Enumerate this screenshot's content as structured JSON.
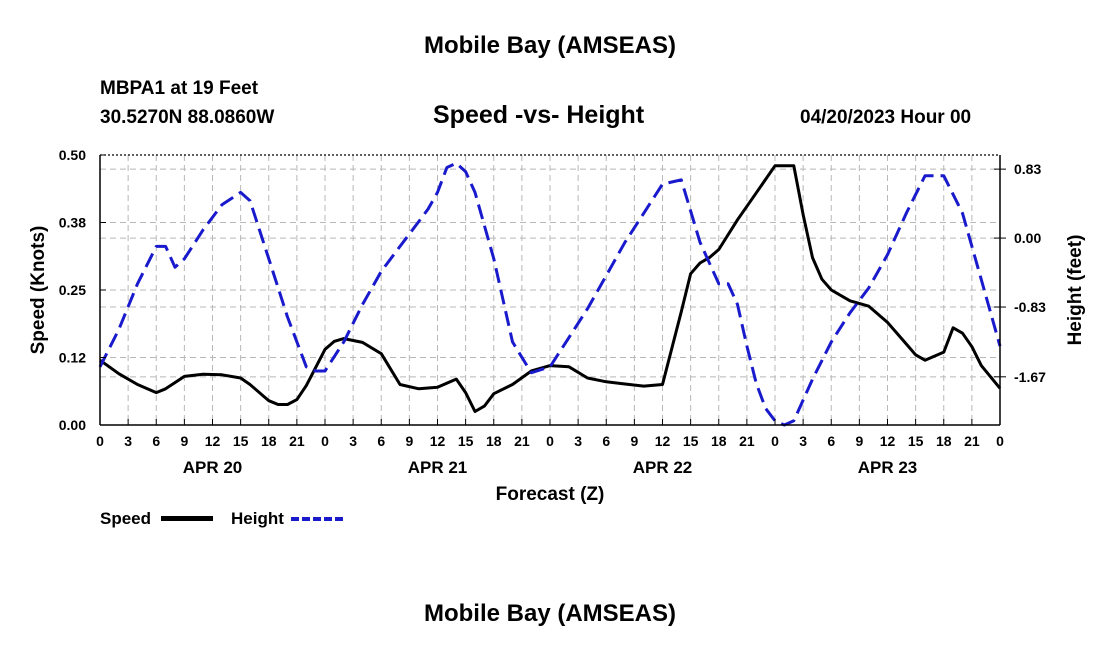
{
  "header": {
    "title": "Mobile Bay (AMSEAS)",
    "station": "MBPA1 at 19 Feet",
    "coords": "30.5270N  88.0860W",
    "subtitle": "Speed -vs- Height",
    "datetime": "04/20/2023 Hour 00"
  },
  "legend": {
    "speed_label": "Speed",
    "height_label": "Height"
  },
  "footer": {
    "title": "Mobile Bay (AMSEAS)"
  },
  "chart_data": {
    "type": "line",
    "title": "Speed -vs- Height",
    "xlabel": "Forecast (Z)",
    "ylabel_left": "Speed (Knots)",
    "ylabel_right": "Height (feet)",
    "grid": true,
    "legend_position": "bottom-left",
    "xlim": [
      0,
      96
    ],
    "ylim_left": [
      0,
      0.5
    ],
    "ylim_right": [
      -2.25,
      1.0
    ],
    "x_tick_labels": [
      "0",
      "3",
      "6",
      "9",
      "12",
      "15",
      "18",
      "21",
      "0",
      "3",
      "6",
      "9",
      "12",
      "15",
      "18",
      "21",
      "0",
      "3",
      "6",
      "9",
      "12",
      "15",
      "18",
      "21",
      "0",
      "3",
      "6",
      "9",
      "12",
      "15",
      "18",
      "21",
      "0"
    ],
    "day_labels": [
      {
        "label": "APR 20",
        "x": 12
      },
      {
        "label": "APR 21",
        "x": 36
      },
      {
        "label": "APR 22",
        "x": 60
      },
      {
        "label": "APR 23",
        "x": 84
      }
    ],
    "left_ticks": [
      "0.00",
      "0.12",
      "0.25",
      "0.38",
      "0.50"
    ],
    "right_ticks": [
      {
        "label": "0.83",
        "value": 0.83
      },
      {
        "label": "0.00",
        "value": 0.0
      },
      {
        "label": "-0.83",
        "value": -0.83
      },
      {
        "label": "-1.67",
        "value": -1.67
      }
    ],
    "series": [
      {
        "name": "Speed",
        "axis": "left",
        "color": "#000000",
        "style": "solid",
        "x": [
          0,
          2,
          4,
          6,
          7,
          9,
          11,
          13,
          15,
          16,
          18,
          19,
          20,
          21,
          22,
          24,
          25,
          26,
          28,
          30,
          32,
          34,
          36,
          38,
          39,
          40,
          41,
          42,
          44,
          46,
          48,
          50,
          52,
          54,
          56,
          58,
          60,
          62,
          63,
          64,
          65,
          66,
          68,
          70,
          72,
          74,
          75,
          76,
          77,
          78,
          80,
          82,
          84,
          86,
          87,
          88,
          90,
          91,
          92,
          93,
          94,
          96
        ],
        "values": [
          0.12,
          0.095,
          0.075,
          0.06,
          0.067,
          0.09,
          0.094,
          0.093,
          0.087,
          0.075,
          0.045,
          0.038,
          0.038,
          0.047,
          0.073,
          0.14,
          0.155,
          0.16,
          0.153,
          0.132,
          0.075,
          0.067,
          0.07,
          0.085,
          0.06,
          0.025,
          0.035,
          0.058,
          0.075,
          0.1,
          0.11,
          0.108,
          0.087,
          0.08,
          0.076,
          0.072,
          0.075,
          0.21,
          0.28,
          0.3,
          0.31,
          0.325,
          0.38,
          0.43,
          0.48,
          0.48,
          0.39,
          0.31,
          0.27,
          0.25,
          0.23,
          0.22,
          0.19,
          0.15,
          0.13,
          0.12,
          0.135,
          0.18,
          0.17,
          0.145,
          0.11,
          0.068
        ]
      },
      {
        "name": "Height",
        "axis": "right",
        "color": "#1a1acd",
        "style": "dashed",
        "x": [
          0,
          2,
          4,
          6,
          7,
          8,
          9,
          11,
          13,
          15,
          16,
          18,
          20,
          22,
          23,
          24,
          26,
          28,
          30,
          32,
          34,
          35,
          36,
          37,
          38,
          39,
          40,
          42,
          44,
          46,
          48,
          50,
          52,
          54,
          56,
          58,
          60,
          62,
          64,
          66,
          67,
          68,
          69,
          70,
          71,
          72,
          73,
          74,
          75,
          76,
          78,
          80,
          82,
          84,
          86,
          88,
          90,
          92,
          94,
          96
        ],
        "values": [
          -1.55,
          -1.1,
          -0.55,
          -0.1,
          -0.1,
          -0.35,
          -0.25,
          0.1,
          0.4,
          0.55,
          0.45,
          -0.25,
          -0.95,
          -1.55,
          -1.6,
          -1.6,
          -1.25,
          -0.8,
          -0.4,
          -0.1,
          0.2,
          0.35,
          0.55,
          0.85,
          0.9,
          0.8,
          0.55,
          -0.25,
          -1.25,
          -1.62,
          -1.55,
          -1.2,
          -0.85,
          -0.45,
          -0.05,
          0.3,
          0.65,
          0.7,
          -0.05,
          -0.55,
          -0.55,
          -0.8,
          -1.3,
          -1.75,
          -2.05,
          -2.2,
          -2.25,
          -2.2,
          -1.95,
          -1.7,
          -1.25,
          -0.9,
          -0.6,
          -0.2,
          0.3,
          0.75,
          0.75,
          0.3,
          -0.5,
          -1.3
        ]
      }
    ]
  }
}
